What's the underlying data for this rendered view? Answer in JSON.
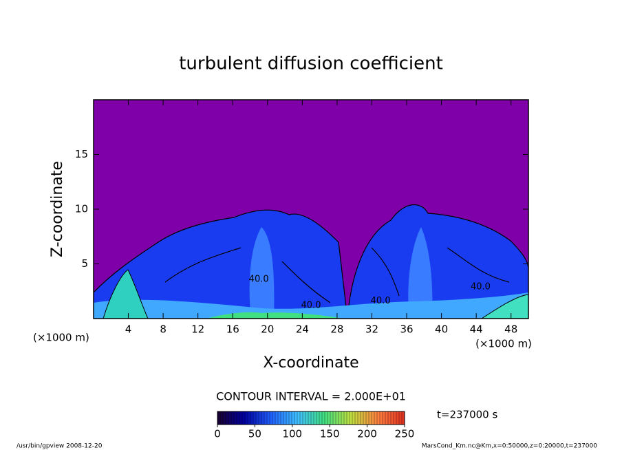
{
  "chart_data": {
    "type": "contour",
    "title": "turbulent diffusion coefficient",
    "x_label": "X-coordinate",
    "y_label": "Z-coordinate",
    "x_unit": "(×1000 m)",
    "y_unit": "(×1000 m)",
    "xlim": [
      0,
      50
    ],
    "xticks": [
      4,
      8,
      12,
      16,
      20,
      24,
      28,
      32,
      36,
      40,
      44,
      48
    ],
    "ylim": [
      0,
      20
    ],
    "yticks": [
      5,
      10,
      15
    ],
    "contour_interval": "CONTOUR INTERVAL = 2.000E+01",
    "contour_labels": [
      {
        "text": "40.0",
        "x": 19.0,
        "z": 3.6
      },
      {
        "text": "40.0",
        "x": 25.0,
        "z": 1.2
      },
      {
        "text": "40.0",
        "x": 33.0,
        "z": 1.6
      },
      {
        "text": "40.0",
        "x": 44.5,
        "z": 2.9
      }
    ],
    "colorbar": {
      "lim": [
        0,
        250
      ],
      "ticks": [
        0,
        50,
        100,
        150,
        200,
        250
      ],
      "colors": [
        "#1a0030",
        "#0000a0",
        "#2060ff",
        "#40c0ff",
        "#40e080",
        "#c0e040",
        "#ff8040",
        "#e03020"
      ]
    },
    "time_label": "t=237000 s",
    "footer_left": "/usr/bin/gpview  2008-12-20",
    "footer_right": "MarsCond_Km.nc@Km,x=0:50000,z=0:20000,t=237000"
  }
}
